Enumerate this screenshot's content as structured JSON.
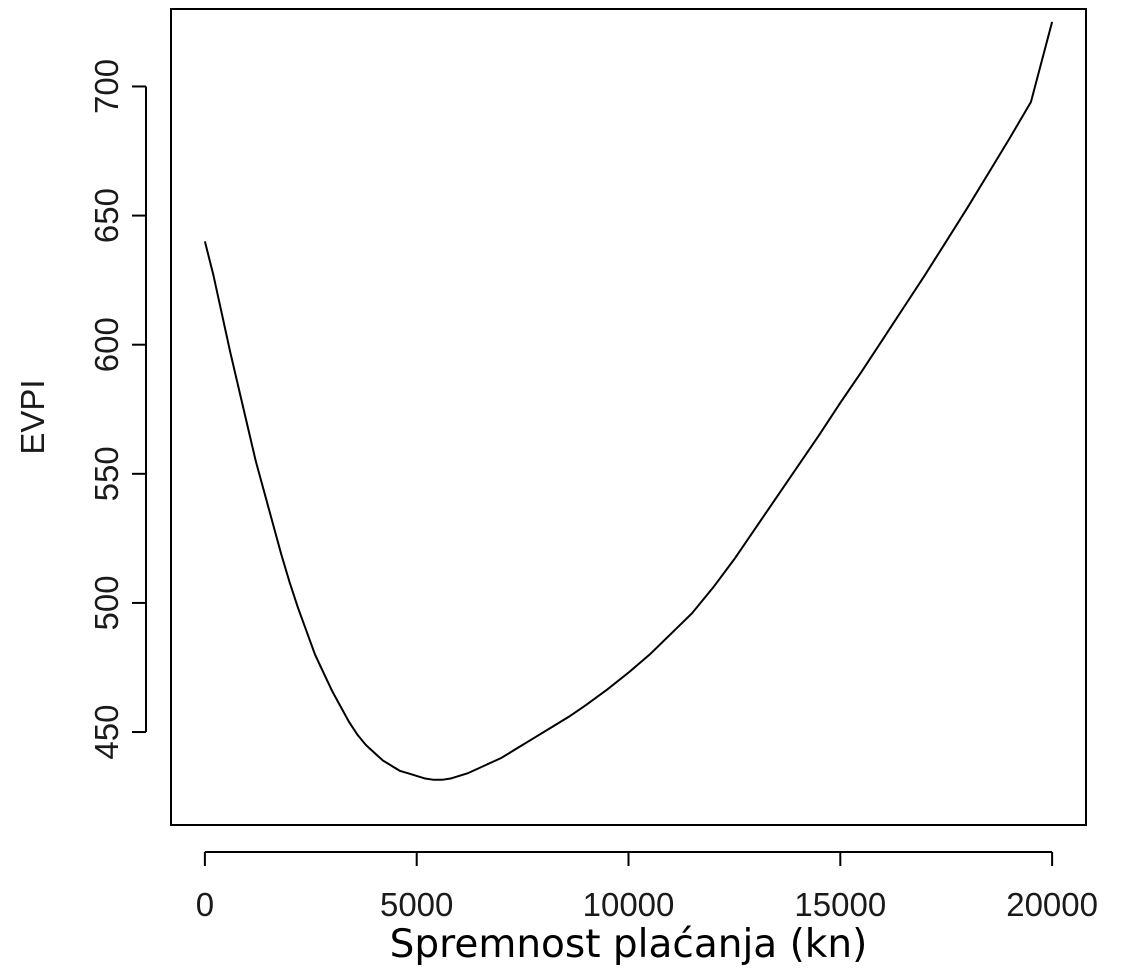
{
  "chart_data": {
    "type": "line",
    "title": "",
    "xlabel": "Spremnost plaćanja (kn)",
    "ylabel": "EVPI",
    "xlim": [
      -800,
      20800
    ],
    "ylim": [
      414,
      730
    ],
    "x_ticks": [
      0,
      5000,
      10000,
      15000,
      20000
    ],
    "x_tick_labels": [
      "0",
      "5000",
      "10000",
      "15000",
      "20000"
    ],
    "y_ticks": [
      450,
      500,
      550,
      600,
      650,
      700
    ],
    "y_tick_labels": [
      "450",
      "500",
      "550",
      "600",
      "650",
      "700"
    ],
    "grid": false,
    "legend": "none",
    "line_color": "#000000",
    "series": [
      {
        "x": [
          0,
          200,
          400,
          600,
          800,
          1000,
          1200,
          1400,
          1600,
          1800,
          2000,
          2200,
          2400,
          2600,
          2800,
          3000,
          3200,
          3400,
          3600,
          3800,
          4000,
          4200,
          4400,
          4600,
          4800,
          5000,
          5200,
          5400,
          5600,
          5800,
          6000,
          6200,
          6400,
          6600,
          6800,
          7000,
          7400,
          7800,
          8200,
          8600,
          9000,
          9500,
          10000,
          10500,
          11000,
          11500,
          12000,
          12500,
          13000,
          13500,
          14000,
          14500,
          15000,
          15500,
          16000,
          16500,
          17000,
          17500,
          18000,
          18500,
          19000,
          19500,
          20000
        ],
        "y": [
          640,
          627,
          612,
          597,
          583,
          569,
          555,
          543,
          531,
          519,
          508,
          498,
          489,
          480,
          473,
          466,
          460,
          454,
          449,
          445,
          442,
          439,
          437,
          435,
          434,
          433,
          432,
          431.5,
          431.5,
          432,
          433,
          434,
          435.5,
          437,
          438.5,
          440,
          444,
          448,
          452,
          456,
          460.5,
          466.5,
          473,
          480,
          488,
          496,
          506,
          517,
          529,
          541,
          553,
          565,
          577.5,
          589.5,
          602,
          614.5,
          627,
          640,
          653,
          666.5,
          680,
          694,
          725
        ]
      }
    ]
  }
}
